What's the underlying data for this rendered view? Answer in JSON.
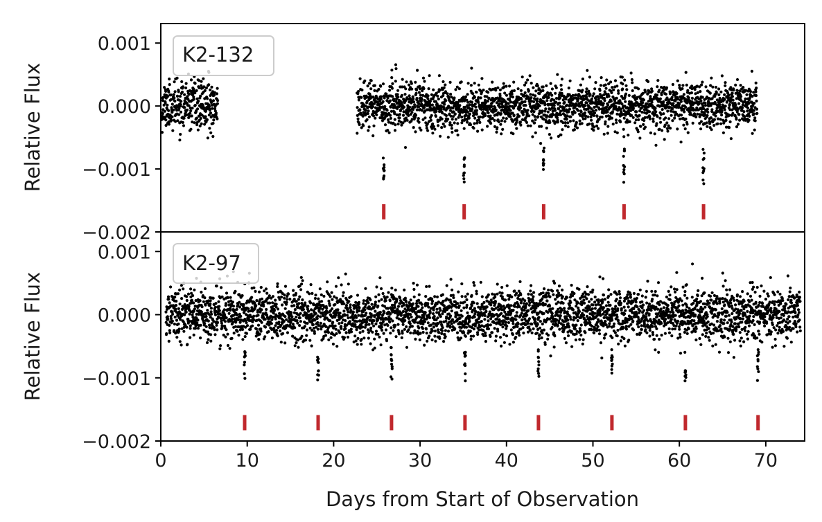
{
  "chart_data": [
    {
      "type": "scatter",
      "legend": "K2-132",
      "legend_position": "top-left",
      "ylabel": "Relative Flux",
      "xlabel": "",
      "xlim": [
        0,
        74.5
      ],
      "ylim": [
        -0.002,
        0.00131
      ],
      "yticks": [
        0.001,
        0.0,
        -0.001,
        -0.002
      ],
      "ytick_labels": [
        "0.001",
        "0.000",
        "−0.001",
        "−0.002"
      ],
      "grid": false,
      "point_color": "#000000",
      "marker_color": "#c0282d",
      "observation_segments": [
        [
          0.1,
          6.6
        ],
        [
          22.7,
          69.0
        ]
      ],
      "scatter_stddev": 0.00019,
      "transit_depth": 0.0012,
      "transit_times": [
        25.8,
        35.1,
        44.3,
        53.6,
        62.8
      ],
      "transit_markers": [
        25.8,
        35.1,
        44.3,
        53.6,
        62.8
      ],
      "marker_level": -0.00168
    },
    {
      "type": "scatter",
      "legend": "K2-97",
      "legend_position": "top-left",
      "ylabel": "Relative Flux",
      "xlabel": "Days from Start of Observation",
      "xlim": [
        0,
        74.5
      ],
      "ylim": [
        -0.002,
        0.00131
      ],
      "yticks": [
        0.001,
        0.0,
        -0.001,
        -0.002
      ],
      "ytick_labels": [
        "0.001",
        "0.000",
        "−0.001",
        "−0.002"
      ],
      "xticks": [
        0,
        10,
        20,
        30,
        40,
        50,
        60,
        70
      ],
      "xtick_labels": [
        "0",
        "10",
        "20",
        "30",
        "40",
        "50",
        "60",
        "70"
      ],
      "grid": false,
      "point_color": "#000000",
      "marker_color": "#c0282d",
      "observation_segments": [
        [
          0.6,
          74.0
        ]
      ],
      "scatter_stddev": 0.00021,
      "transit_depth": 0.001,
      "transit_times": [
        9.7,
        18.2,
        26.7,
        35.2,
        43.7,
        52.2,
        60.7,
        69.1
      ],
      "transit_markers": [
        9.7,
        18.2,
        26.7,
        35.2,
        43.7,
        52.2,
        60.7,
        69.1
      ],
      "marker_level": -0.00171
    }
  ]
}
